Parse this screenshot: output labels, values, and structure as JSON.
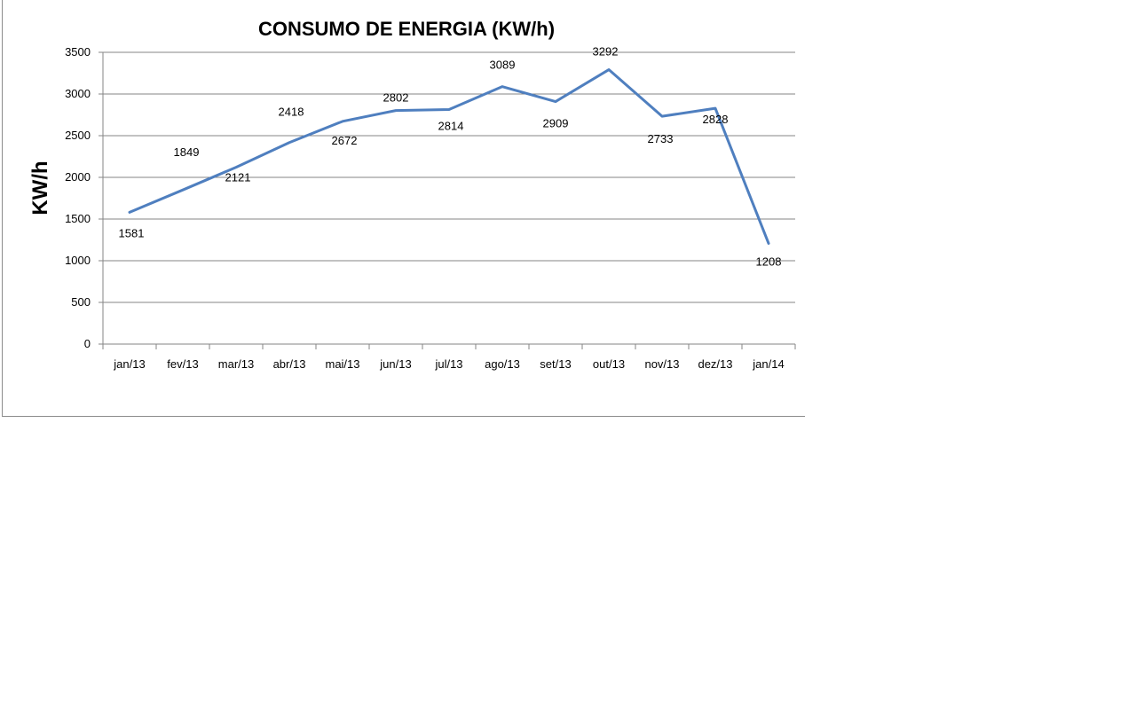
{
  "chart_data": {
    "type": "line",
    "title": "CONSUMO DE ENERGIA (KW/h)",
    "ylabel": "KW/h",
    "xlabel": "",
    "categories": [
      "jan/13",
      "fev/13",
      "mar/13",
      "abr/13",
      "mai/13",
      "jun/13",
      "jul/13",
      "ago/13",
      "set/13",
      "out/13",
      "nov/13",
      "dez/13",
      "jan/14"
    ],
    "series": [
      {
        "name": "",
        "values": [
          1581,
          1849,
          2121,
          2418,
          2672,
          2802,
          2814,
          3089,
          2909,
          3292,
          2733,
          2828,
          1208
        ],
        "color": "#4f7fbf"
      }
    ],
    "ylim": [
      0,
      3500
    ],
    "yticks": [
      0,
      500,
      1000,
      1500,
      2000,
      2500,
      3000,
      3500
    ],
    "grid": true,
    "legend": "none"
  }
}
